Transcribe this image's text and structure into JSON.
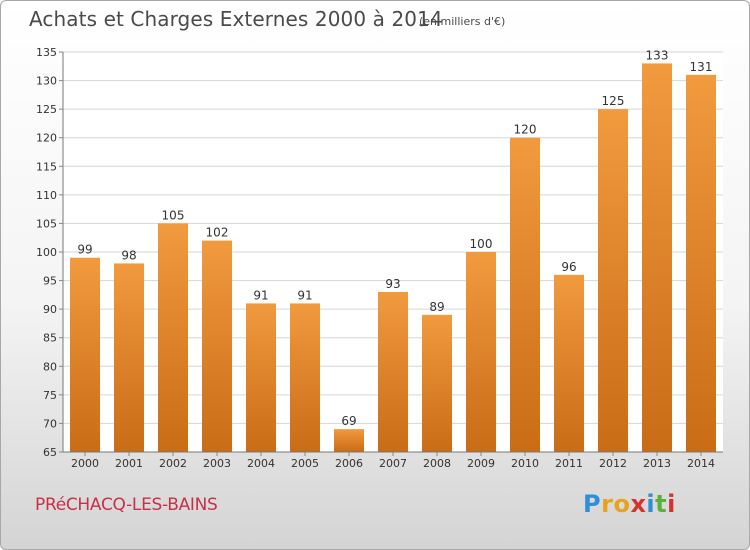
{
  "title": "Achats et Charges Externes 2000 à 2014",
  "subtitle": "(en milliers d'€)",
  "commune": "PRéCHACQ-LES-BAINS",
  "logo": {
    "letters": [
      "P",
      "r",
      "o",
      "x",
      "i",
      "t",
      "i"
    ],
    "colors": [
      "#2e8fd6",
      "#e8a21c",
      "#e8a21c",
      "#d8322e",
      "#2e8fd6",
      "#56b23a",
      "#d8322e"
    ]
  },
  "chart_data": {
    "type": "bar",
    "title": "Achats et Charges Externes 2000 à 2014",
    "subtitle": "(en milliers d'€)",
    "categories": [
      "2000",
      "2001",
      "2002",
      "2003",
      "2004",
      "2005",
      "2006",
      "2007",
      "2008",
      "2009",
      "2010",
      "2011",
      "2012",
      "2013",
      "2014"
    ],
    "values": [
      99,
      98,
      105,
      102,
      91,
      91,
      69,
      93,
      89,
      100,
      120,
      96,
      125,
      133,
      131
    ],
    "ylim": [
      65,
      135
    ],
    "yticks": [
      65,
      70,
      75,
      80,
      85,
      90,
      95,
      100,
      105,
      110,
      115,
      120,
      125,
      130,
      135
    ],
    "grid": true,
    "bar_color": "#f19a3e",
    "bar_color_dark": "#c96c16"
  }
}
